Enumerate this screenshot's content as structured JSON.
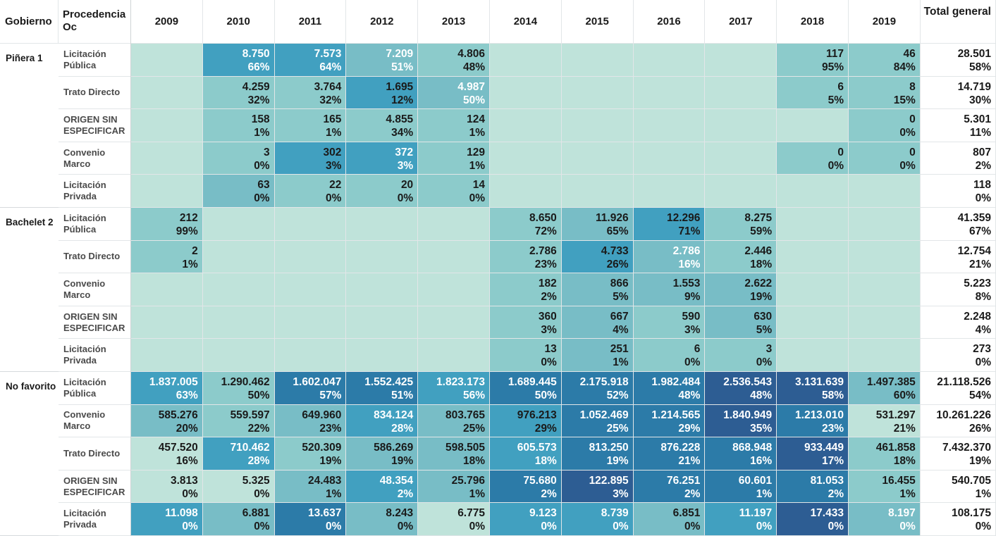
{
  "chart_data": {
    "type": "heatmap",
    "row_header": "Gobierno",
    "subrow_header": "Procedencia Oc",
    "years": [
      "2009",
      "2010",
      "2011",
      "2012",
      "2013",
      "2014",
      "2015",
      "2016",
      "2017",
      "2018",
      "2019"
    ],
    "total_label": "Total general",
    "groups": [
      {
        "name": "Piñera 1",
        "rows": [
          {
            "label": "Licitación Pública",
            "cells": [
              null,
              {
                "v": "8.750",
                "p": "66%"
              },
              {
                "v": "7.573",
                "p": "64%"
              },
              {
                "v": "7.209",
                "p": "51%"
              },
              {
                "v": "4.806",
                "p": "48%"
              },
              null,
              null,
              null,
              null,
              {
                "v": "117",
                "p": "95%"
              },
              {
                "v": "46",
                "p": "84%"
              }
            ],
            "total": {
              "v": "28.501",
              "p": "58%"
            }
          },
          {
            "label": "Trato Directo",
            "cells": [
              null,
              {
                "v": "4.259",
                "p": "32%"
              },
              {
                "v": "3.764",
                "p": "32%"
              },
              {
                "v": "1.695",
                "p": "12%"
              },
              {
                "v": "4.987",
                "p": "50%"
              },
              null,
              null,
              null,
              null,
              {
                "v": "6",
                "p": "5%"
              },
              {
                "v": "8",
                "p": "15%"
              }
            ],
            "total": {
              "v": "14.719",
              "p": "30%"
            }
          },
          {
            "label": "ORIGEN SIN ESPECIFICAR",
            "cells": [
              null,
              {
                "v": "158",
                "p": "1%"
              },
              {
                "v": "165",
                "p": "1%"
              },
              {
                "v": "4.855",
                "p": "34%"
              },
              {
                "v": "124",
                "p": "1%"
              },
              null,
              null,
              null,
              null,
              null,
              {
                "v": "0",
                "p": "0%"
              }
            ],
            "total": {
              "v": "5.301",
              "p": "11%"
            }
          },
          {
            "label": "Convenio Marco",
            "cells": [
              null,
              {
                "v": "3",
                "p": "0%"
              },
              {
                "v": "302",
                "p": "3%"
              },
              {
                "v": "372",
                "p": "3%"
              },
              {
                "v": "129",
                "p": "1%"
              },
              null,
              null,
              null,
              null,
              {
                "v": "0",
                "p": "0%"
              },
              {
                "v": "0",
                "p": "0%"
              }
            ],
            "total": {
              "v": "807",
              "p": "2%"
            }
          },
          {
            "label": "Licitación Privada",
            "cells": [
              null,
              {
                "v": "63",
                "p": "0%"
              },
              {
                "v": "22",
                "p": "0%"
              },
              {
                "v": "20",
                "p": "0%"
              },
              {
                "v": "14",
                "p": "0%"
              },
              null,
              null,
              null,
              null,
              null,
              null
            ],
            "total": {
              "v": "118",
              "p": "0%"
            }
          }
        ]
      },
      {
        "name": "Bachelet 2",
        "rows": [
          {
            "label": "Licitación Pública",
            "cells": [
              {
                "v": "212",
                "p": "99%"
              },
              null,
              null,
              null,
              null,
              {
                "v": "8.650",
                "p": "72%"
              },
              {
                "v": "11.926",
                "p": "65%"
              },
              {
                "v": "12.296",
                "p": "71%"
              },
              {
                "v": "8.275",
                "p": "59%"
              },
              null,
              null
            ],
            "total": {
              "v": "41.359",
              "p": "67%"
            }
          },
          {
            "label": "Trato Directo",
            "cells": [
              {
                "v": "2",
                "p": "1%"
              },
              null,
              null,
              null,
              null,
              {
                "v": "2.786",
                "p": "23%"
              },
              {
                "v": "4.733",
                "p": "26%"
              },
              {
                "v": "2.786",
                "p": "16%"
              },
              {
                "v": "2.446",
                "p": "18%"
              },
              null,
              null
            ],
            "total": {
              "v": "12.754",
              "p": "21%"
            }
          },
          {
            "label": "Convenio Marco",
            "cells": [
              null,
              null,
              null,
              null,
              null,
              {
                "v": "182",
                "p": "2%"
              },
              {
                "v": "866",
                "p": "5%"
              },
              {
                "v": "1.553",
                "p": "9%"
              },
              {
                "v": "2.622",
                "p": "19%"
              },
              null,
              null
            ],
            "total": {
              "v": "5.223",
              "p": "8%"
            }
          },
          {
            "label": "ORIGEN SIN ESPECIFICAR",
            "cells": [
              null,
              null,
              null,
              null,
              null,
              {
                "v": "360",
                "p": "3%"
              },
              {
                "v": "667",
                "p": "4%"
              },
              {
                "v": "590",
                "p": "3%"
              },
              {
                "v": "630",
                "p": "5%"
              },
              null,
              null
            ],
            "total": {
              "v": "2.248",
              "p": "4%"
            }
          },
          {
            "label": "Licitación Privada",
            "cells": [
              null,
              null,
              null,
              null,
              null,
              {
                "v": "13",
                "p": "0%"
              },
              {
                "v": "251",
                "p": "1%"
              },
              {
                "v": "6",
                "p": "0%"
              },
              {
                "v": "3",
                "p": "0%"
              },
              null,
              null
            ],
            "total": {
              "v": "273",
              "p": "0%"
            }
          }
        ]
      },
      {
        "name": "No favorito",
        "rows": [
          {
            "label": "Licitación Pública",
            "cells": [
              {
                "v": "1.837.005",
                "p": "63%"
              },
              {
                "v": "1.290.462",
                "p": "50%"
              },
              {
                "v": "1.602.047",
                "p": "57%"
              },
              {
                "v": "1.552.425",
                "p": "51%"
              },
              {
                "v": "1.823.173",
                "p": "56%"
              },
              {
                "v": "1.689.445",
                "p": "50%"
              },
              {
                "v": "2.175.918",
                "p": "52%"
              },
              {
                "v": "1.982.484",
                "p": "48%"
              },
              {
                "v": "2.536.543",
                "p": "48%"
              },
              {
                "v": "3.131.639",
                "p": "58%"
              },
              {
                "v": "1.497.385",
                "p": "60%"
              }
            ],
            "total": {
              "v": "21.118.526",
              "p": "54%"
            }
          },
          {
            "label": "Convenio Marco",
            "cells": [
              {
                "v": "585.276",
                "p": "20%"
              },
              {
                "v": "559.597",
                "p": "22%"
              },
              {
                "v": "649.960",
                "p": "23%"
              },
              {
                "v": "834.124",
                "p": "28%"
              },
              {
                "v": "803.765",
                "p": "25%"
              },
              {
                "v": "976.213",
                "p": "29%"
              },
              {
                "v": "1.052.469",
                "p": "25%"
              },
              {
                "v": "1.214.565",
                "p": "29%"
              },
              {
                "v": "1.840.949",
                "p": "35%"
              },
              {
                "v": "1.213.010",
                "p": "23%"
              },
              {
                "v": "531.297",
                "p": "21%"
              }
            ],
            "total": {
              "v": "10.261.226",
              "p": "26%"
            }
          },
          {
            "label": "Trato Directo",
            "cells": [
              {
                "v": "457.520",
                "p": "16%"
              },
              {
                "v": "710.462",
                "p": "28%"
              },
              {
                "v": "520.309",
                "p": "19%"
              },
              {
                "v": "586.269",
                "p": "19%"
              },
              {
                "v": "598.505",
                "p": "18%"
              },
              {
                "v": "605.573",
                "p": "18%"
              },
              {
                "v": "813.250",
                "p": "19%"
              },
              {
                "v": "876.228",
                "p": "21%"
              },
              {
                "v": "868.948",
                "p": "16%"
              },
              {
                "v": "933.449",
                "p": "17%"
              },
              {
                "v": "461.858",
                "p": "18%"
              }
            ],
            "total": {
              "v": "7.432.370",
              "p": "19%"
            }
          },
          {
            "label": "ORIGEN SIN ESPECIFICAR",
            "cells": [
              {
                "v": "3.813",
                "p": "0%"
              },
              {
                "v": "5.325",
                "p": "0%"
              },
              {
                "v": "24.483",
                "p": "1%"
              },
              {
                "v": "48.354",
                "p": "2%"
              },
              {
                "v": "25.796",
                "p": "1%"
              },
              {
                "v": "75.680",
                "p": "2%"
              },
              {
                "v": "122.895",
                "p": "3%"
              },
              {
                "v": "76.251",
                "p": "2%"
              },
              {
                "v": "60.601",
                "p": "1%"
              },
              {
                "v": "81.053",
                "p": "2%"
              },
              {
                "v": "16.455",
                "p": "1%"
              }
            ],
            "total": {
              "v": "540.705",
              "p": "1%"
            }
          },
          {
            "label": "Licitación Privada",
            "cells": [
              {
                "v": "11.098",
                "p": "0%"
              },
              {
                "v": "6.881",
                "p": "0%"
              },
              {
                "v": "13.637",
                "p": "0%"
              },
              {
                "v": "8.243",
                "p": "0%"
              },
              {
                "v": "6.775",
                "p": "0%"
              },
              {
                "v": "9.123",
                "p": "0%"
              },
              {
                "v": "8.739",
                "p": "0%"
              },
              {
                "v": "6.851",
                "p": "0%"
              },
              {
                "v": "11.197",
                "p": "0%"
              },
              {
                "v": "17.433",
                "p": "0%"
              },
              {
                "v": "8.197",
                "p": "0%"
              }
            ],
            "total": {
              "v": "108.175",
              "p": "0%"
            }
          }
        ]
      }
    ],
    "colors": {
      "empty": "#bfe3da",
      "palette": [
        "#bfe3da",
        "#8ccbcb",
        "#78bdc6",
        "#41a0c0",
        "#2c7ba8",
        "#2d5d93"
      ]
    }
  }
}
